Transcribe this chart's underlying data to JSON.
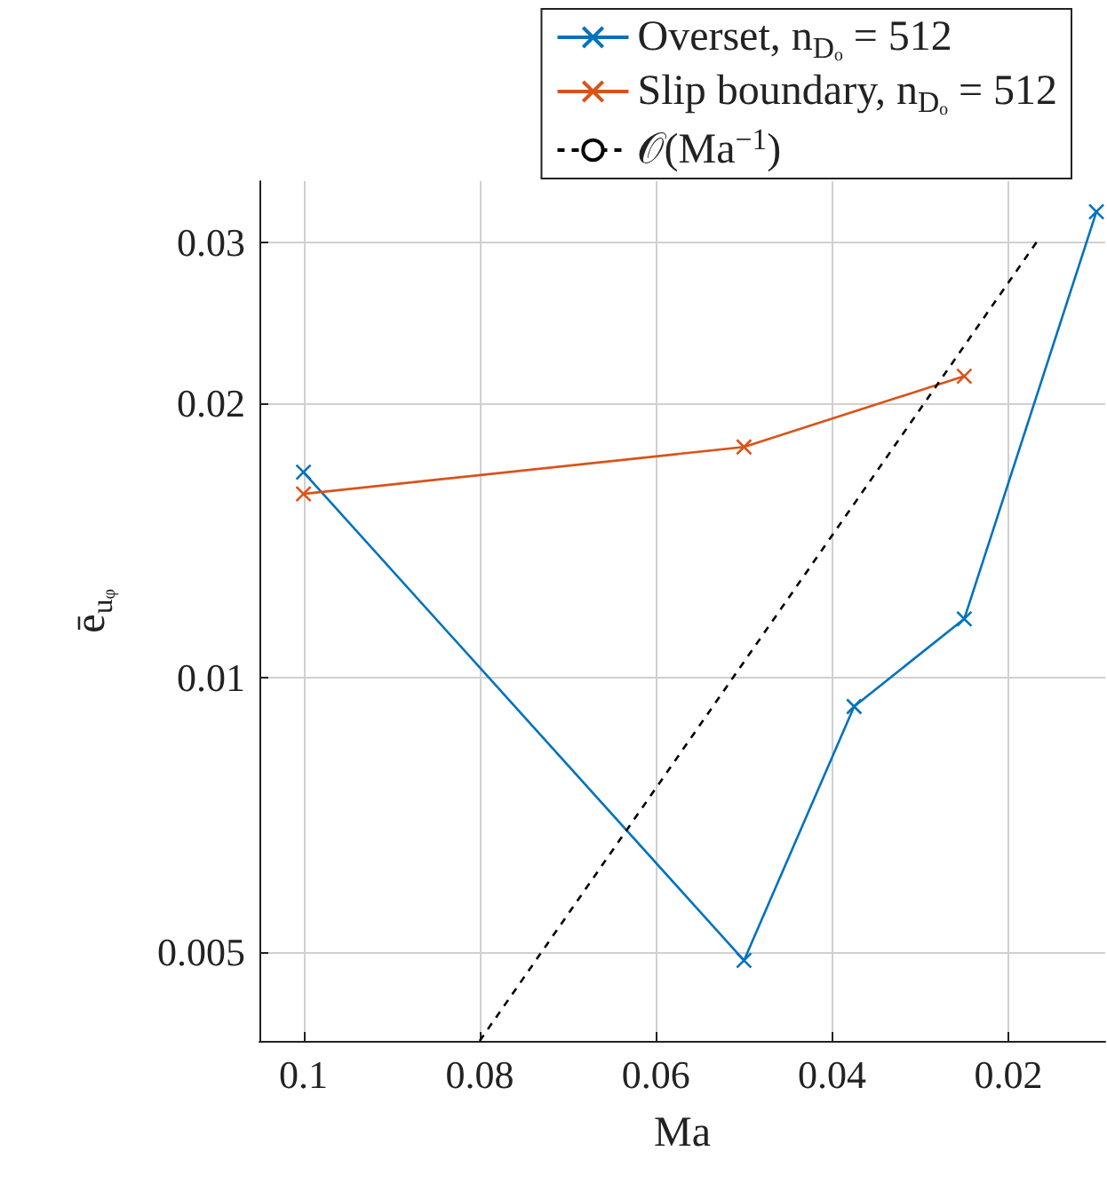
{
  "chart_data": {
    "type": "line",
    "xlabel": "Ma",
    "ylabel": "ē$_{uᵩ}$",
    "xlim": [
      0.105,
      0.009
    ],
    "xticks": [
      0.1,
      0.08,
      0.06,
      0.04,
      0.02
    ],
    "ylim": [
      0.004,
      0.035
    ],
    "yticks": [
      0.005,
      0.01,
      0.02,
      0.03
    ],
    "log": "y",
    "grid": true,
    "legend": "top right",
    "marker": "cross",
    "series": [
      {
        "name": "Overset, n$_{Dₒ}$ = 512",
        "color": "#0072bd",
        "x": [
          0.1,
          0.05,
          0.0375,
          0.025,
          0.01
        ],
        "values": [
          0.0168,
          0.0049,
          0.0093,
          0.0116,
          0.0324
        ]
      },
      {
        "name": "Slip boundary, n$_{Dₒ}$ = 512",
        "color": "#d95319",
        "x": [
          0.1,
          0.05,
          0.025
        ],
        "values": [
          0.0159,
          0.0179,
          0.0214
        ]
      },
      {
        "name": "𝒪(Ma$^{−1}$)",
        "color": "#000000",
        "marker": "none",
        "line_style": "dashed",
        "x": [
          0.08,
          0.0168
        ],
        "values": [
          0.004,
          0.03
        ]
      }
    ]
  }
}
